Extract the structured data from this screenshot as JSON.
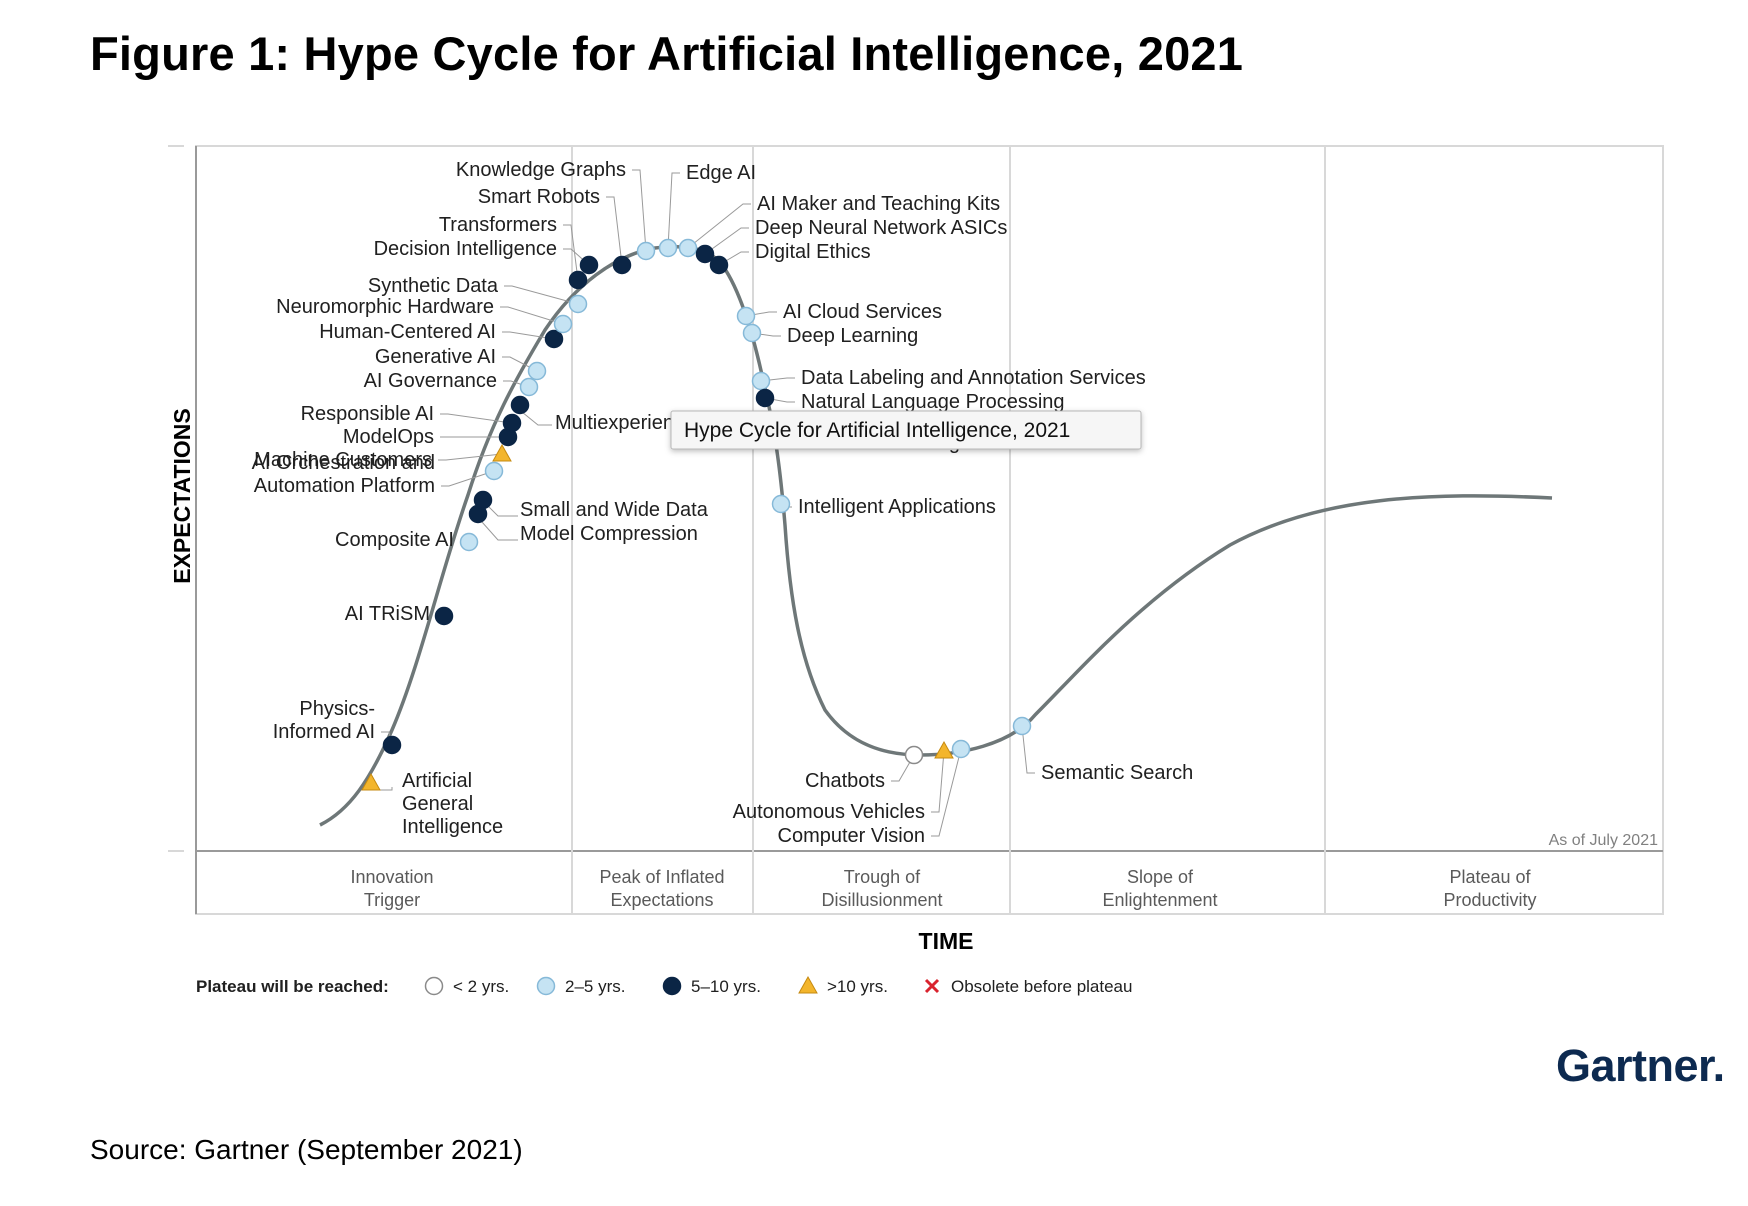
{
  "figure_title": "Figure 1: Hype Cycle for Artificial Intelligence, 2021",
  "source": "Source: Gartner (September 2021)",
  "logo": "Gartner",
  "tooltip": "Hype Cycle for Artificial Intelligence, 2021",
  "as_of": "As of July 2021",
  "axis": {
    "y": "EXPECTATIONS",
    "x": "TIME"
  },
  "phases": [
    [
      "Innovation",
      "Trigger"
    ],
    [
      "Peak of Inflated",
      "Expectations"
    ],
    [
      "Trough of",
      "Disillusionment"
    ],
    [
      "Slope of",
      "Enlightenment"
    ],
    [
      "Plateau of",
      "Productivity"
    ]
  ],
  "legend": {
    "title": "Plateau will be reached:",
    "items": [
      {
        "key": "lt2",
        "label": "< 2 yrs."
      },
      {
        "key": "2to5",
        "label": "2–5 yrs."
      },
      {
        "key": "5to10",
        "label": "5–10 yrs."
      },
      {
        "key": "gt10",
        "label": ">10 yrs."
      },
      {
        "key": "obsolete",
        "label": "Obsolete before plateau"
      }
    ]
  },
  "colors": {
    "lt2": "#ffffff",
    "2to5": "#c5e3f3",
    "5to10": "#0b2545",
    "gt10": "#f3b52c",
    "obsolete": "#d9232e",
    "curve": "#6e7778",
    "grid": "#d8d8d8"
  },
  "technologies": [
    {
      "name": "Artificial General Intelligence",
      "label": [
        "Artificial",
        "General",
        "Intelligence"
      ],
      "cat": "gt10"
    },
    {
      "name": "Physics-Informed AI",
      "label": [
        "Physics-",
        "Informed AI"
      ],
      "cat": "5to10"
    },
    {
      "name": "AI TRiSM",
      "label": [
        "AI TRiSM"
      ],
      "cat": "5to10"
    },
    {
      "name": "Composite AI",
      "label": [
        "Composite AI"
      ],
      "cat": "2to5"
    },
    {
      "name": "Model Compression",
      "label": [
        "Model Compression"
      ],
      "cat": "5to10"
    },
    {
      "name": "Small and Wide Data",
      "label": [
        "Small and Wide Data"
      ],
      "cat": "5to10"
    },
    {
      "name": "AI Orchestration and Automation Platform",
      "label": [
        "AI Orchestration and",
        "Automation Platform"
      ],
      "cat": "2to5"
    },
    {
      "name": "Machine Customers",
      "label": [
        "Machine Customers"
      ],
      "cat": "gt10"
    },
    {
      "name": "ModelOps",
      "label": [
        "ModelOps"
      ],
      "cat": "5to10"
    },
    {
      "name": "Responsible AI",
      "label": [
        "Responsible AI"
      ],
      "cat": "5to10"
    },
    {
      "name": "Multiexperience",
      "label": [
        "Multiexperience"
      ],
      "cat": "5to10"
    },
    {
      "name": "AI Governance",
      "label": [
        "AI Governance"
      ],
      "cat": "2to5"
    },
    {
      "name": "Generative AI",
      "label": [
        "Generative AI"
      ],
      "cat": "2to5"
    },
    {
      "name": "Human-Centered AI",
      "label": [
        "Human-Centered AI"
      ],
      "cat": "5to10"
    },
    {
      "name": "Neuromorphic Hardware",
      "label": [
        "Neuromorphic Hardware"
      ],
      "cat": "2to5"
    },
    {
      "name": "Synthetic Data",
      "label": [
        "Synthetic Data"
      ],
      "cat": "2to5"
    },
    {
      "name": "Decision Intelligence",
      "label": [
        "Decision Intelligence"
      ],
      "cat": "5to10"
    },
    {
      "name": "Transformers",
      "label": [
        "Transformers"
      ],
      "cat": "5to10"
    },
    {
      "name": "Smart Robots",
      "label": [
        "Smart Robots"
      ],
      "cat": "5to10"
    },
    {
      "name": "Knowledge Graphs",
      "label": [
        "Knowledge Graphs"
      ],
      "cat": "2to5"
    },
    {
      "name": "Edge AI",
      "label": [
        "Edge AI"
      ],
      "cat": "2to5"
    },
    {
      "name": "AI Maker and Teaching Kits",
      "label": [
        "AI Maker and Teaching Kits"
      ],
      "cat": "2to5"
    },
    {
      "name": "Deep Neural Network ASICs",
      "label": [
        "Deep Neural Network ASICs"
      ],
      "cat": "5to10"
    },
    {
      "name": "Digital Ethics",
      "label": [
        "Digital Ethics"
      ],
      "cat": "5to10"
    },
    {
      "name": "AI Cloud Services",
      "label": [
        "AI Cloud Services"
      ],
      "cat": "2to5"
    },
    {
      "name": "Deep Learning",
      "label": [
        "Deep Learning"
      ],
      "cat": "2to5"
    },
    {
      "name": "Data Labeling and Annotation Services",
      "label": [
        "Data Labeling and Annotation Services"
      ],
      "cat": "2to5"
    },
    {
      "name": "Natural Language Processing",
      "label": [
        "Natural Language Processing"
      ],
      "cat": "5to10"
    },
    {
      "name": "Machine Learning",
      "label": [
        "Machine Learning"
      ],
      "cat": "2to5"
    },
    {
      "name": "Intelligent Applications",
      "label": [
        "Intelligent Applications"
      ],
      "cat": "2to5"
    },
    {
      "name": "Chatbots",
      "label": [
        "Chatbots"
      ],
      "cat": "lt2"
    },
    {
      "name": "Autonomous Vehicles",
      "label": [
        "Autonomous Vehicles"
      ],
      "cat": "gt10"
    },
    {
      "name": "Computer Vision",
      "label": [
        "Computer Vision"
      ],
      "cat": "2to5"
    },
    {
      "name": "Semantic Search",
      "label": [
        "Semantic Search"
      ],
      "cat": "2to5"
    }
  ]
}
